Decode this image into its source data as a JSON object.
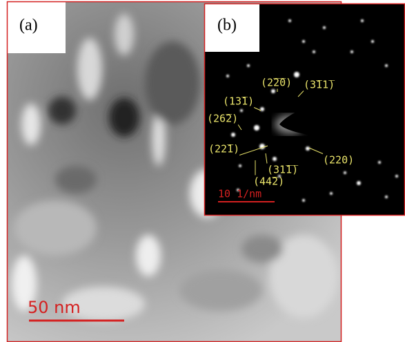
{
  "panel_a": {
    "label": "(a)",
    "scale_bar": "50 nm"
  },
  "panel_b": {
    "label": "(b)",
    "scale_bar": "10 1/nm",
    "reflections": [
      "(2̅2̅0)",
      "(3̅11̅)",
      "(13̅1)",
      "(26̅2)",
      "(22̅1)",
      "(220)",
      "(31̅1̅)",
      "(44̅2)"
    ]
  }
}
